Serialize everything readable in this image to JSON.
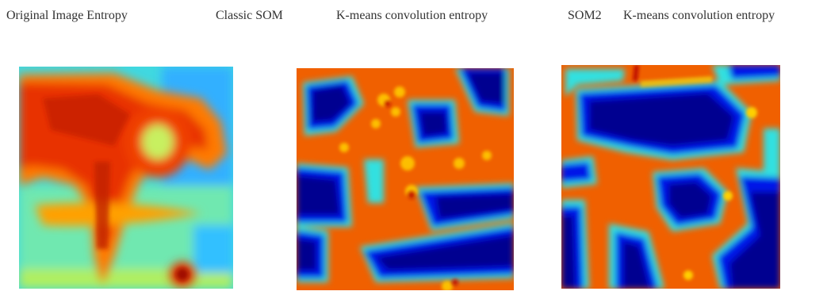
{
  "captions": {
    "original": "Original Image Entropy",
    "classic_som": "Classic SOM",
    "classic_kmeans": "K-means convolution entropy",
    "som2": "SOM2",
    "som2_kmeans": "K-means convolution entropy"
  },
  "panels": [
    {
      "name": "original-image-entropy",
      "description_colormap": "jet"
    },
    {
      "name": "classic-som-kmeans-entropy",
      "description_colormap": "jet"
    },
    {
      "name": "som2-kmeans-entropy",
      "description_colormap": "jet"
    }
  ],
  "colors": {
    "jet_dark_blue": "#00008f",
    "jet_blue": "#0020ff",
    "jet_cyan": "#20e0ff",
    "jet_green": "#8fef70",
    "jet_yellow": "#ffe000",
    "jet_orange": "#ff8000",
    "jet_red": "#e01000",
    "jet_dark_red": "#a00000"
  }
}
